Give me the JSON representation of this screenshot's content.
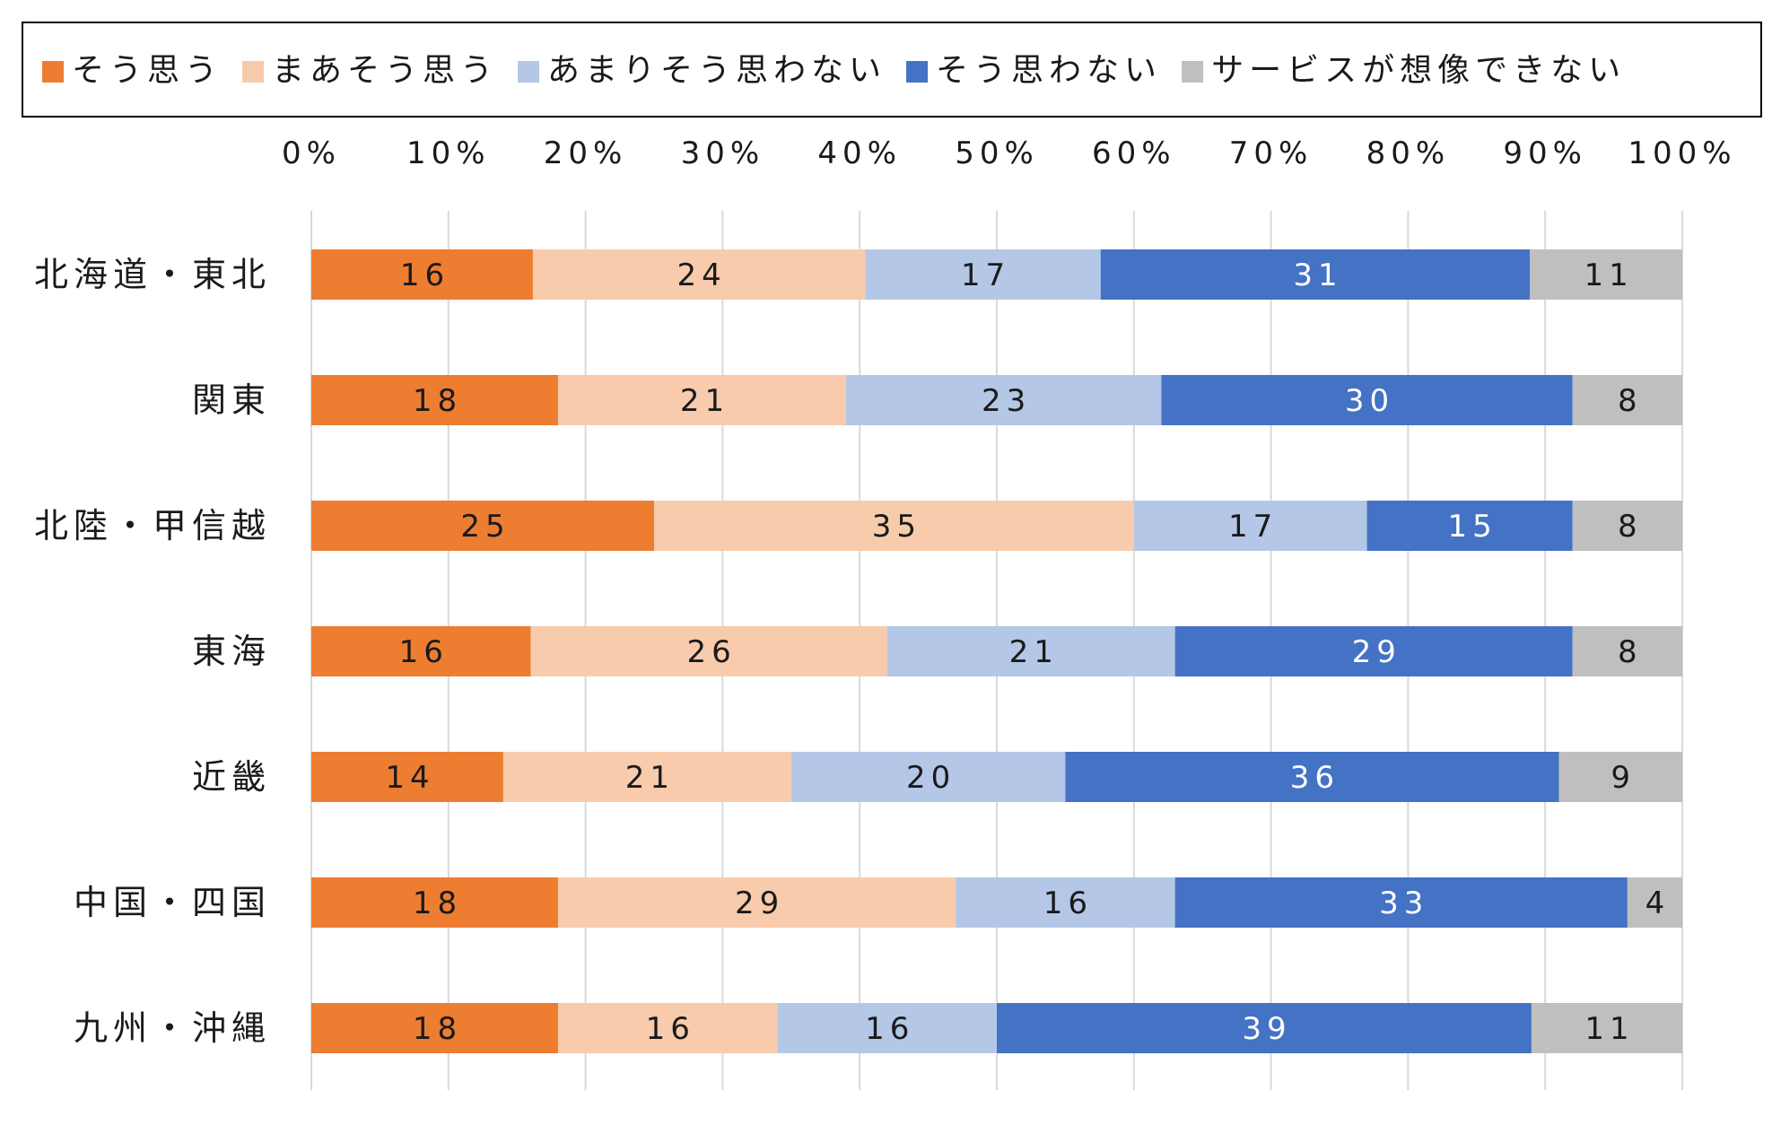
{
  "chart_data": {
    "type": "bar",
    "orientation": "horizontal",
    "stacked": "percent",
    "categories": [
      "北海道・東北",
      "関東",
      "北陸・甲信越",
      "東海",
      "近畿",
      "中国・四国",
      "九州・沖縄"
    ],
    "series": [
      {
        "name": "そう思う",
        "color": "#ED7D31",
        "label_color": "#1a1a1a",
        "values": [
          16,
          18,
          25,
          16,
          14,
          18,
          18
        ]
      },
      {
        "name": "まあそう思う",
        "color": "#F8CBAD",
        "label_color": "#1a1a1a",
        "values": [
          24,
          21,
          35,
          26,
          21,
          29,
          16
        ]
      },
      {
        "name": "あまりそう思わない",
        "color": "#B4C7E7",
        "label_color": "#1a1a1a",
        "values": [
          17,
          23,
          17,
          21,
          20,
          16,
          16
        ]
      },
      {
        "name": "そう思わない",
        "color": "#4472C4",
        "label_color": "#ffffff",
        "values": [
          31,
          30,
          15,
          29,
          36,
          33,
          39
        ]
      },
      {
        "name": "サービスが想像できない",
        "color": "#BFBFBF",
        "label_color": "#1a1a1a",
        "values": [
          11,
          8,
          8,
          8,
          9,
          4,
          11
        ]
      }
    ],
    "x_ticks": [
      "0%",
      "10%",
      "20%",
      "30%",
      "40%",
      "50%",
      "60%",
      "70%",
      "80%",
      "90%",
      "100%"
    ],
    "xlim": [
      0,
      100
    ],
    "axis_position": "top",
    "grid": true,
    "legend_position": "top",
    "title": "",
    "xlabel": "",
    "ylabel": ""
  }
}
